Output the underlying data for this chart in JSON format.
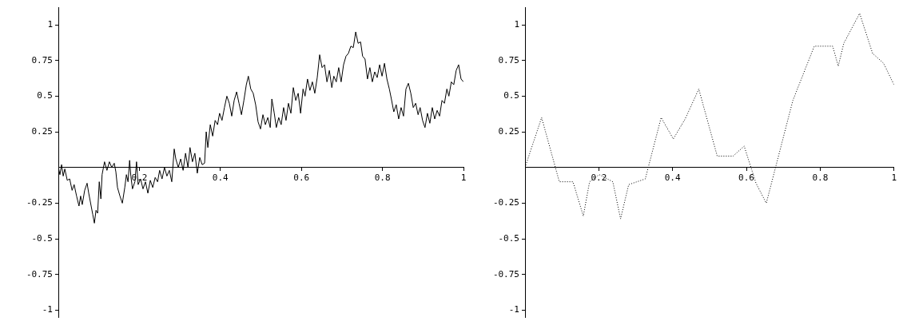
{
  "chart_data": [
    {
      "type": "line",
      "x": [
        0,
        0.004,
        0.008,
        0.012,
        0.016,
        0.022,
        0.028,
        0.034,
        0.039,
        0.045,
        0.051,
        0.055,
        0.059,
        0.065,
        0.071,
        0.075,
        0.081,
        0.085,
        0.089,
        0.093,
        0.097,
        0.101,
        0.105,
        0.108,
        0.114,
        0.12,
        0.126,
        0.132,
        0.138,
        0.142,
        0.146,
        0.152,
        0.158,
        0.164,
        0.168,
        0.172,
        0.176,
        0.179,
        0.183,
        0.189,
        0.193,
        0.197,
        0.203,
        0.209,
        0.215,
        0.221,
        0.227,
        0.233,
        0.239,
        0.245,
        0.25,
        0.256,
        0.262,
        0.268,
        0.274,
        0.28,
        0.286,
        0.29,
        0.296,
        0.302,
        0.308,
        0.314,
        0.32,
        0.325,
        0.331,
        0.337,
        0.343,
        0.349,
        0.355,
        0.361,
        0.365,
        0.369,
        0.375,
        0.381,
        0.387,
        0.393,
        0.398,
        0.404,
        0.41,
        0.416,
        0.422,
        0.428,
        0.434,
        0.44,
        0.446,
        0.452,
        0.458,
        0.464,
        0.469,
        0.475,
        0.481,
        0.487,
        0.493,
        0.499,
        0.505,
        0.511,
        0.517,
        0.523,
        0.527,
        0.533,
        0.538,
        0.544,
        0.55,
        0.556,
        0.562,
        0.568,
        0.574,
        0.58,
        0.586,
        0.592,
        0.598,
        0.604,
        0.609,
        0.615,
        0.621,
        0.627,
        0.633,
        0.639,
        0.645,
        0.651,
        0.657,
        0.663,
        0.669,
        0.675,
        0.68,
        0.686,
        0.692,
        0.698,
        0.704,
        0.71,
        0.716,
        0.722,
        0.728,
        0.734,
        0.74,
        0.746,
        0.751,
        0.757,
        0.763,
        0.769,
        0.775,
        0.781,
        0.787,
        0.793,
        0.799,
        0.805,
        0.811,
        0.817,
        0.822,
        0.828,
        0.834,
        0.84,
        0.846,
        0.852,
        0.858,
        0.864,
        0.87,
        0.876,
        0.882,
        0.888,
        0.893,
        0.899,
        0.905,
        0.911,
        0.917,
        0.923,
        0.929,
        0.935,
        0.941,
        0.947,
        0.953,
        0.959,
        0.964,
        0.97,
        0.976,
        0.982,
        0.988,
        0.994,
        1
      ],
      "values": [
        0,
        -0.05,
        0.02,
        -0.06,
        -0.01,
        -0.09,
        -0.08,
        -0.16,
        -0.12,
        -0.2,
        -0.27,
        -0.2,
        -0.26,
        -0.16,
        -0.11,
        -0.18,
        -0.27,
        -0.33,
        -0.39,
        -0.3,
        -0.32,
        -0.1,
        -0.22,
        -0.05,
        0.04,
        -0.02,
        0.04,
        0,
        0.03,
        -0.03,
        -0.14,
        -0.2,
        -0.25,
        -0.14,
        -0.05,
        -0.1,
        0.05,
        -0.06,
        -0.15,
        -0.1,
        0.04,
        -0.12,
        -0.08,
        -0.15,
        -0.1,
        -0.18,
        -0.09,
        -0.14,
        -0.07,
        -0.1,
        -0.02,
        -0.08,
        0,
        -0.06,
        -0.02,
        -0.1,
        0.13,
        0.06,
        0,
        0.06,
        -0.02,
        0.1,
        0,
        0.14,
        0.04,
        0.1,
        -0.04,
        0.07,
        0.02,
        0.03,
        0.25,
        0.14,
        0.3,
        0.22,
        0.33,
        0.3,
        0.38,
        0.33,
        0.42,
        0.5,
        0.45,
        0.36,
        0.47,
        0.53,
        0.45,
        0.37,
        0.47,
        0.58,
        0.64,
        0.55,
        0.52,
        0.44,
        0.32,
        0.27,
        0.37,
        0.3,
        0.35,
        0.28,
        0.48,
        0.38,
        0.28,
        0.35,
        0.3,
        0.42,
        0.33,
        0.45,
        0.38,
        0.56,
        0.47,
        0.52,
        0.38,
        0.55,
        0.5,
        0.62,
        0.54,
        0.6,
        0.52,
        0.63,
        0.79,
        0.7,
        0.72,
        0.6,
        0.68,
        0.56,
        0.64,
        0.6,
        0.7,
        0.6,
        0.72,
        0.78,
        0.8,
        0.85,
        0.84,
        0.95,
        0.87,
        0.88,
        0.78,
        0.76,
        0.62,
        0.7,
        0.6,
        0.67,
        0.63,
        0.72,
        0.64,
        0.73,
        0.62,
        0.55,
        0.48,
        0.39,
        0.44,
        0.34,
        0.42,
        0.36,
        0.55,
        0.59,
        0.52,
        0.42,
        0.45,
        0.37,
        0.42,
        0.33,
        0.28,
        0.38,
        0.31,
        0.42,
        0.34,
        0.4,
        0.36,
        0.47,
        0.45,
        0.55,
        0.5,
        0.6,
        0.58,
        0.68,
        0.72,
        0.62,
        0.6
      ],
      "color": "#000000",
      "xlim": [
        0,
        1
      ],
      "ylim": [
        -1.05,
        1.12
      ],
      "xticks": [
        0.2,
        0.4,
        0.6,
        0.8,
        1
      ],
      "yticks": [
        -1,
        -0.75,
        -0.5,
        -0.25,
        0.25,
        0.5,
        0.75,
        1
      ],
      "marker": "none",
      "line_style": "solid"
    },
    {
      "type": "line",
      "x": [
        0,
        0.045,
        0.093,
        0.13,
        0.158,
        0.175,
        0.201,
        0.238,
        0.259,
        0.281,
        0.326,
        0.369,
        0.402,
        0.434,
        0.471,
        0.521,
        0.564,
        0.594,
        0.626,
        0.654,
        0.726,
        0.784,
        0.834,
        0.849,
        0.864,
        0.907,
        0.942,
        0.972,
        1
      ],
      "values": [
        0,
        0.35,
        -0.1,
        -0.1,
        -0.34,
        -0.1,
        -0.05,
        -0.1,
        -0.36,
        -0.12,
        -0.08,
        0.35,
        0.2,
        0.34,
        0.55,
        0.08,
        0.08,
        0.15,
        -0.11,
        -0.25,
        0.47,
        0.85,
        0.85,
        0.71,
        0.87,
        1.08,
        0.8,
        0.73,
        0.58
      ],
      "color": "#000000",
      "xlim": [
        0,
        1
      ],
      "ylim": [
        -1.05,
        1.12
      ],
      "xticks": [
        0.2,
        0.4,
        0.6,
        0.8,
        1
      ],
      "yticks": [
        -1,
        -0.75,
        -0.5,
        -0.25,
        0.25,
        0.5,
        0.75,
        1
      ],
      "marker": "none",
      "line_style": "dotted"
    }
  ]
}
